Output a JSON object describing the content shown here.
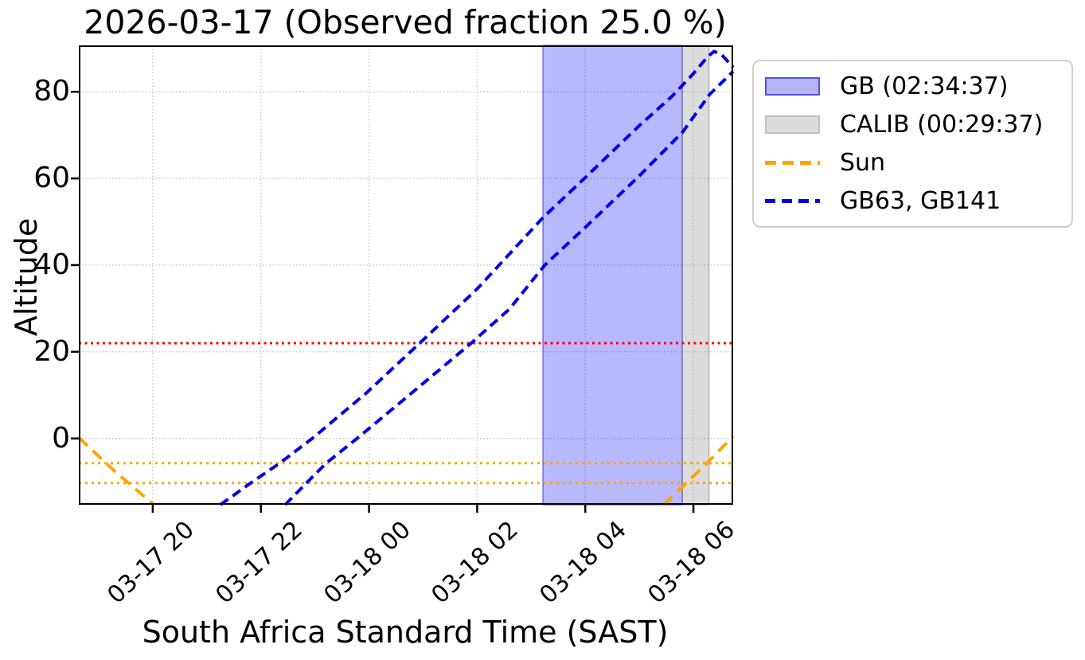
{
  "chart_data": {
    "type": "line",
    "title": "2026-03-17 (Observed fraction 25.0 %)",
    "xlabel": "South Africa Standard Time (SAST)",
    "ylabel": "Altitude",
    "x_unit": "hours since 2026-03-17 00:00 SAST",
    "xlim": [
      18.632,
      30.735
    ],
    "ylim": [
      -15.3,
      90.7
    ],
    "grid": true,
    "grid_color": "#c4c4c4",
    "x_ticks": [
      {
        "t": 20,
        "label": "03-17 20"
      },
      {
        "t": 22,
        "label": "03-17 22"
      },
      {
        "t": 24,
        "label": "03-18 00"
      },
      {
        "t": 26,
        "label": "03-18 02"
      },
      {
        "t": 28,
        "label": "03-18 04"
      },
      {
        "t": 30,
        "label": "03-18 06"
      }
    ],
    "y_ticks": [
      {
        "v": 0,
        "label": "0"
      },
      {
        "v": 20,
        "label": "20"
      },
      {
        "v": 40,
        "label": "40"
      },
      {
        "v": 60,
        "label": "60"
      },
      {
        "v": 80,
        "label": "80"
      }
    ],
    "bands": [
      {
        "name": "GB",
        "duration": "02:34:37",
        "from": 27.217,
        "to": 29.794,
        "fill": "rgba(0,0,255,0.28)",
        "edge": "rgba(40,40,235,0.6)"
      },
      {
        "name": "CALIB",
        "duration": "00:29:37",
        "from": 29.794,
        "to": 30.288,
        "fill": "rgba(128,128,128,0.28)",
        "edge": "rgba(128,128,128,0.55)"
      }
    ],
    "hlines": [
      {
        "name": "altitude-limit",
        "y": 22,
        "color": "#ff0000",
        "width": 3,
        "dash": [
          3,
          4.5
        ]
      },
      {
        "name": "sun-twilight-upper",
        "y": -5.7,
        "color": "#ffa500",
        "width": 3,
        "dash": [
          3,
          5
        ]
      },
      {
        "name": "sun-twilight-lower",
        "y": -10.3,
        "color": "#ffa500",
        "width": 3,
        "dash": [
          3,
          5
        ]
      }
    ],
    "series": [
      {
        "name": "Sun",
        "color": "#ffa500",
        "width": 4,
        "dash": [
          15,
          9
        ],
        "segments": [
          [
            [
              18.632,
              0.2
            ],
            [
              19.3,
              -7.6
            ],
            [
              20.02,
              -15.3
            ]
          ],
          [
            [
              29.45,
              -15.3
            ],
            [
              30.2,
              -6.3
            ],
            [
              30.735,
              0.5
            ]
          ]
        ]
      },
      {
        "name": "GB63, GB141",
        "color": "#0000ee",
        "width": 4,
        "dash": [
          12,
          7
        ],
        "segments": [
          [
            [
              21.25,
              -15.3
            ],
            [
              21.81,
              -10.3
            ],
            [
              22.35,
              -5.7
            ],
            [
              22.95,
              0.0
            ],
            [
              23.95,
              10.5
            ],
            [
              24.92,
              21.8
            ],
            [
              26.0,
              34.5
            ],
            [
              27.22,
              51.0
            ],
            [
              28.0,
              60.2
            ],
            [
              29.0,
              72.2
            ],
            [
              29.6,
              78.9
            ],
            [
              30.0,
              84.2
            ],
            [
              30.25,
              87.9
            ],
            [
              30.38,
              89.3
            ],
            [
              30.52,
              88.6
            ],
            [
              30.735,
              85.6
            ]
          ],
          [
            [
              22.45,
              -15.3
            ],
            [
              22.84,
              -10.3
            ],
            [
              23.21,
              -5.7
            ],
            [
              23.78,
              0.0
            ],
            [
              24.8,
              10.6
            ],
            [
              25.87,
              21.8
            ],
            [
              26.6,
              29.9
            ],
            [
              27.25,
              40.0
            ],
            [
              28.0,
              48.7
            ],
            [
              29.0,
              60.6
            ],
            [
              29.8,
              70.7
            ],
            [
              30.3,
              79.4
            ],
            [
              30.735,
              84.7
            ]
          ]
        ]
      }
    ],
    "legend": [
      {
        "label": "GB (02:34:37)",
        "swatch": "patch",
        "fill": "#b5b5f7",
        "edge": "#5050f0"
      },
      {
        "label": "CALIB (00:29:37)",
        "swatch": "patch",
        "fill": "#dcdcdc",
        "edge": "#c0c0c0"
      },
      {
        "label": "Sun",
        "swatch": "line",
        "color": "#ffa500",
        "dash": [
          14,
          8
        ]
      },
      {
        "label": "GB63, GB141",
        "swatch": "line",
        "color": "#0000ee",
        "dash": [
          13,
          8
        ]
      }
    ]
  }
}
